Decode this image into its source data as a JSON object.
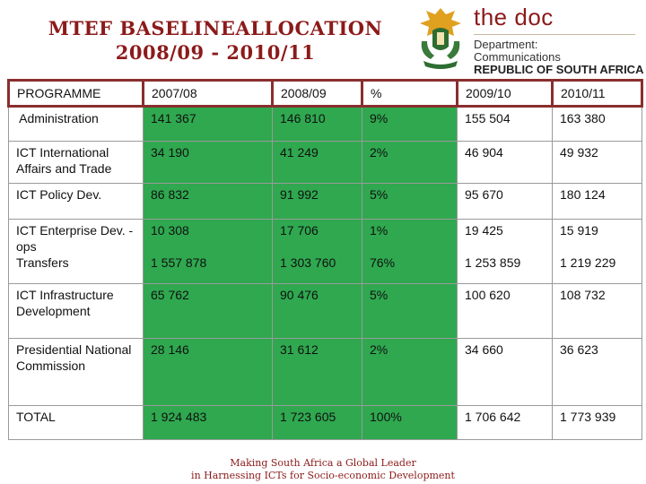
{
  "title": {
    "line1": "MTEF BASELINEALLOCATION",
    "line2": "2008/09 - 2010/11"
  },
  "brand": {
    "name": "the doc",
    "dept": "Department:",
    "dept_name": "Communications",
    "country": "REPUBLIC OF SOUTH AFRICA",
    "crest_icon": "coat-of-arms-icon"
  },
  "colors": {
    "accent": "#8c1a1a",
    "highlight_columns": "#2fa84f",
    "header_border": "#8a2e2e"
  },
  "table": {
    "headers": [
      "PROGRAMME",
      "2007/08",
      "2008/09",
      "%",
      "2009/10",
      "2010/11"
    ],
    "rows": [
      {
        "programme": " Administration",
        "y2007": "141 367",
        "y2008": "146 810",
        "pct": "9%",
        "y2009": "155 504",
        "y2010": "163 380"
      },
      {
        "programme": "ICT International Affairs and Trade",
        "y2007": "34 190",
        "y2008": "41 249",
        "pct": "2%",
        "y2009": "46 904",
        "y2010": "49 932"
      },
      {
        "programme": "ICT Policy Dev.",
        "y2007": "86 832",
        "y2008": "91 992",
        "pct": "5%",
        "y2009": "95 670",
        "y2010": "180 124"
      },
      {
        "programme": "ICT Enterprise Dev. - ops",
        "programme_b": "Transfers",
        "y2007": "10 308",
        "y2007_b": "1 557 878",
        "y2008": "17 706",
        "y2008_b": "1 303 760",
        "pct": "1%",
        "pct_b": "76%",
        "y2009": "19 425",
        "y2009_b": "1 253 859",
        "y2010": "15 919",
        "y2010_b": "1 219 229"
      },
      {
        "programme": "ICT Infrastructure Development",
        "y2007": "65 762",
        "y2008": "90 476",
        "pct": "5%",
        "y2009": "100 620",
        "y2010": "108 732"
      },
      {
        "programme": "Presidential National Commission",
        "y2007": "28 146",
        "y2008": "31 612",
        "pct": "2%",
        "y2009": "34 660",
        "y2010": "36 623"
      },
      {
        "programme": "TOTAL",
        "y2007": "1 924 483",
        "y2008": "1 723 605",
        "pct": "100%",
        "y2009": "1 706 642",
        "y2010": "1 773 939"
      }
    ]
  },
  "footer": {
    "line1": "Making South Africa a Global Leader",
    "line2": "in Harnessing ICTs for Socio-economic Development"
  }
}
